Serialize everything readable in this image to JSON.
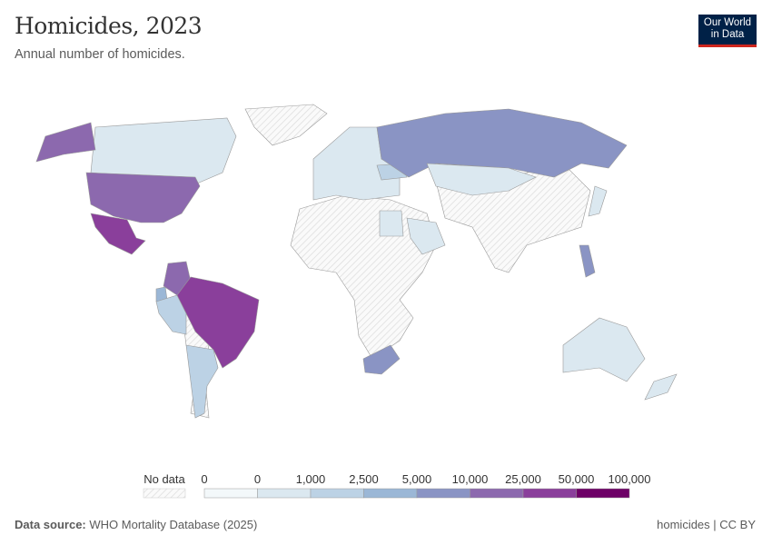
{
  "header": {
    "title": "Homicides, 2023",
    "subtitle": "Annual number of homicides.",
    "logo_text": "Our World in Data"
  },
  "legend": {
    "no_data_label": "No data",
    "no_data_color": "#e8e8e8",
    "bins": [
      {
        "from": "0",
        "to": "0",
        "color": "#f3f8fa"
      },
      {
        "from": "0",
        "to": "1,000",
        "color": "#dbe8f0"
      },
      {
        "from": "1,000",
        "to": "2,500",
        "color": "#bcd2e5"
      },
      {
        "from": "2,500",
        "to": "5,000",
        "color": "#9bb7d6"
      },
      {
        "from": "5,000",
        "to": "10,000",
        "color": "#8a94c4"
      },
      {
        "from": "10,000",
        "to": "25,000",
        "color": "#8c69ae"
      },
      {
        "from": "25,000",
        "to": "50,000",
        "color": "#8a3f9b"
      },
      {
        "from": "50,000",
        "to": "100,000",
        "color": "#6d0066"
      }
    ],
    "tick_labels": [
      "0",
      "0",
      "1,000",
      "2,500",
      "5,000",
      "10,000",
      "25,000",
      "50,000",
      "100,000"
    ]
  },
  "map": {
    "countries": [
      {
        "name": "Canada",
        "bin": 1
      },
      {
        "name": "United States",
        "bin": 5
      },
      {
        "name": "Mexico",
        "bin": 6
      },
      {
        "name": "Colombia",
        "bin": 5
      },
      {
        "name": "Ecuador",
        "bin": 3
      },
      {
        "name": "Peru",
        "bin": 2
      },
      {
        "name": "Brazil",
        "bin": 6
      },
      {
        "name": "Argentina",
        "bin": 2
      },
      {
        "name": "Chile",
        "bin": 1
      },
      {
        "name": "Russia",
        "bin": 4
      },
      {
        "name": "Kazakhstan",
        "bin": 1
      },
      {
        "name": "Europe",
        "bin": 1
      },
      {
        "name": "Ukraine",
        "bin": 2
      },
      {
        "name": "Egypt",
        "bin": 1
      },
      {
        "name": "Saudi Arabia",
        "bin": 1
      },
      {
        "name": "South Africa",
        "bin": 4
      },
      {
        "name": "Philippines",
        "bin": 4
      },
      {
        "name": "Japan",
        "bin": 1
      },
      {
        "name": "Australia",
        "bin": 1
      },
      {
        "name": "New Zealand",
        "bin": 1
      }
    ]
  },
  "footer": {
    "source_label": "Data source:",
    "source": "WHO Mortality Database (2025)",
    "license": "homicides | CC BY"
  }
}
